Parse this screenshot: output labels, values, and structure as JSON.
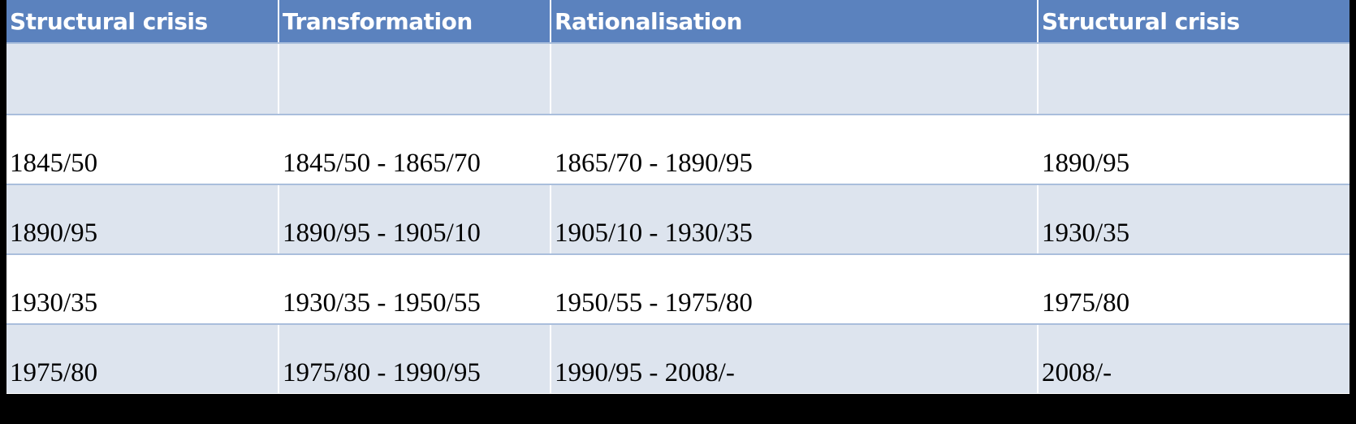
{
  "table": {
    "header": [
      "Structural crisis",
      "Transformation",
      "Rationalisation",
      "Structural crisis"
    ],
    "rows": [
      [
        "1845/50",
        "1845/50 - 1865/70",
        "1865/70 - 1890/95",
        "1890/95"
      ],
      [
        "1890/95",
        "1890/95 - 1905/10",
        "1905/10 - 1930/35",
        "1930/35"
      ],
      [
        "1930/35",
        "1930/35 - 1950/55",
        "1950/55 - 1975/80",
        "1975/80"
      ],
      [
        "1975/80",
        "1975/80 - 1990/95",
        "1990/95 - 2008/-",
        "2008/-"
      ]
    ]
  }
}
